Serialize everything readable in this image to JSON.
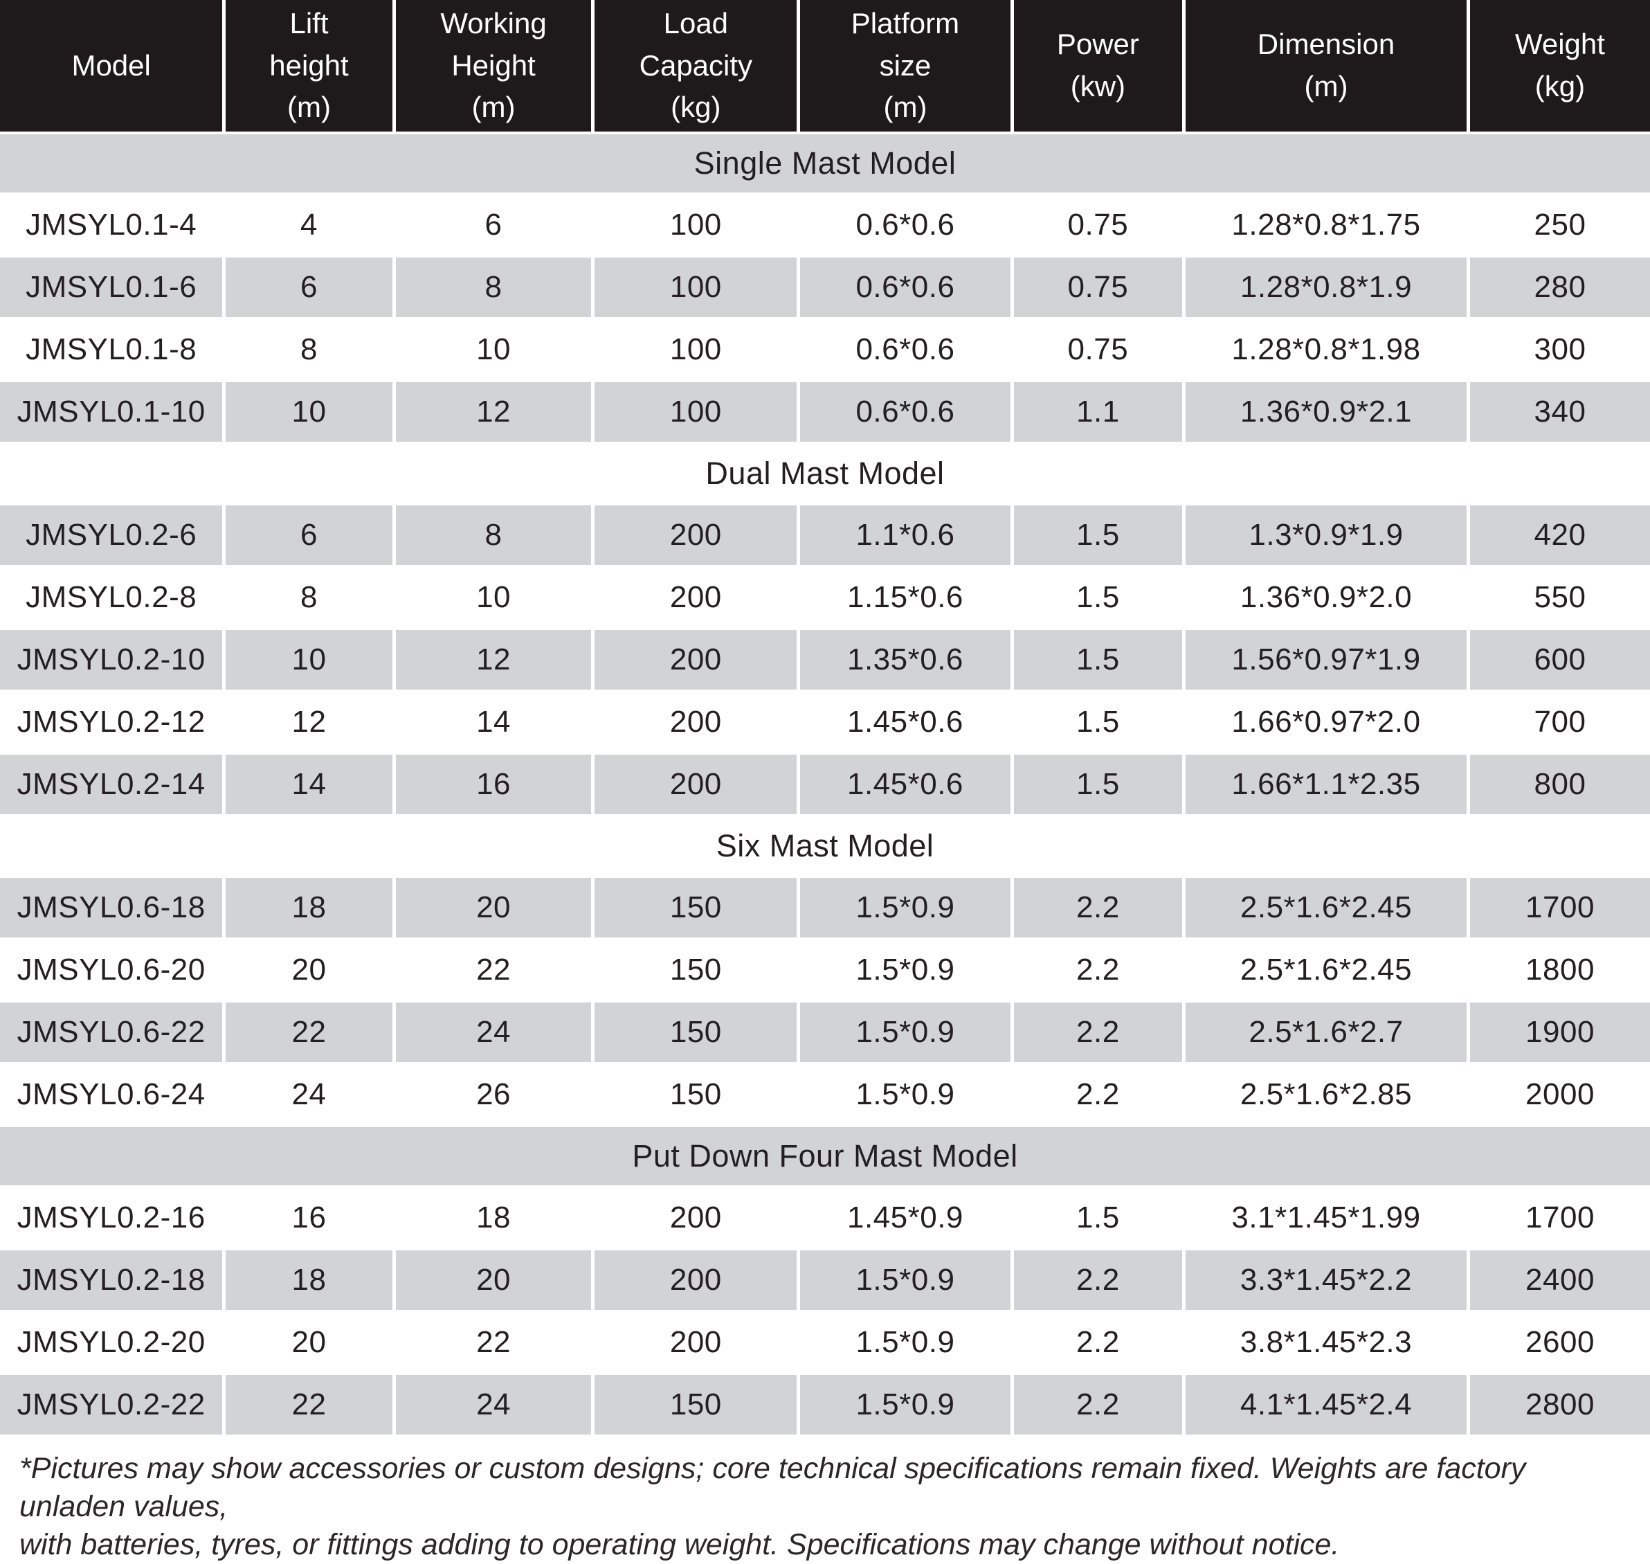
{
  "colors": {
    "header_bg": "#1e1a1b",
    "header_text": "#ffffff",
    "stripe_gray": "#d2d3d5",
    "body_text": "#231f20"
  },
  "table": {
    "columns": [
      {
        "id": "model",
        "label": "Model"
      },
      {
        "id": "lift-height",
        "label": "Lift\nheight\n(m)"
      },
      {
        "id": "working-height",
        "label": "Working\nHeight\n(m)"
      },
      {
        "id": "load-capacity",
        "label": "Load\nCapacity\n(kg)"
      },
      {
        "id": "platform-size",
        "label": "Platform\nsize\n(m)"
      },
      {
        "id": "power",
        "label": "Power\n(kw)"
      },
      {
        "id": "dimension",
        "label": "Dimension\n(m)"
      },
      {
        "id": "weight",
        "label": "Weight\n(kg)"
      }
    ],
    "sections": [
      {
        "title": "Single Mast Model",
        "rows": [
          [
            "JMSYL0.1-4",
            "4",
            "6",
            "100",
            "0.6*0.6",
            "0.75",
            "1.28*0.8*1.75",
            "250"
          ],
          [
            "JMSYL0.1-6",
            "6",
            "8",
            "100",
            "0.6*0.6",
            "0.75",
            "1.28*0.8*1.9",
            "280"
          ],
          [
            "JMSYL0.1-8",
            "8",
            "10",
            "100",
            "0.6*0.6",
            "0.75",
            "1.28*0.8*1.98",
            "300"
          ],
          [
            "JMSYL0.1-10",
            "10",
            "12",
            "100",
            "0.6*0.6",
            "1.1",
            "1.36*0.9*2.1",
            "340"
          ]
        ]
      },
      {
        "title": "Dual Mast Model",
        "rows": [
          [
            "JMSYL0.2-6",
            "6",
            "8",
            "200",
            "1.1*0.6",
            "1.5",
            "1.3*0.9*1.9",
            "420"
          ],
          [
            "JMSYL0.2-8",
            "8",
            "10",
            "200",
            "1.15*0.6",
            "1.5",
            "1.36*0.9*2.0",
            "550"
          ],
          [
            "JMSYL0.2-10",
            "10",
            "12",
            "200",
            "1.35*0.6",
            "1.5",
            "1.56*0.97*1.9",
            "600"
          ],
          [
            "JMSYL0.2-12",
            "12",
            "14",
            "200",
            "1.45*0.6",
            "1.5",
            "1.66*0.97*2.0",
            "700"
          ],
          [
            "JMSYL0.2-14",
            "14",
            "16",
            "200",
            "1.45*0.6",
            "1.5",
            "1.66*1.1*2.35",
            "800"
          ]
        ]
      },
      {
        "title": "Six Mast Model",
        "rows": [
          [
            "JMSYL0.6-18",
            "18",
            "20",
            "150",
            "1.5*0.9",
            "2.2",
            "2.5*1.6*2.45",
            "1700"
          ],
          [
            "JMSYL0.6-20",
            "20",
            "22",
            "150",
            "1.5*0.9",
            "2.2",
            "2.5*1.6*2.45",
            "1800"
          ],
          [
            "JMSYL0.6-22",
            "22",
            "24",
            "150",
            "1.5*0.9",
            "2.2",
            "2.5*1.6*2.7",
            "1900"
          ],
          [
            "JMSYL0.6-24",
            "24",
            "26",
            "150",
            "1.5*0.9",
            "2.2",
            "2.5*1.6*2.85",
            "2000"
          ]
        ]
      },
      {
        "title": "Put Down Four Mast Model",
        "rows": [
          [
            "JMSYL0.2-16",
            "16",
            "18",
            "200",
            "1.45*0.9",
            "1.5",
            "3.1*1.45*1.99",
            "1700"
          ],
          [
            "JMSYL0.2-18",
            "18",
            "20",
            "200",
            "1.5*0.9",
            "2.2",
            "3.3*1.45*2.2",
            "2400"
          ],
          [
            "JMSYL0.2-20",
            "20",
            "22",
            "200",
            "1.5*0.9",
            "2.2",
            "3.8*1.45*2.3",
            "2600"
          ],
          [
            "JMSYL0.2-22",
            "22",
            "24",
            "150",
            "1.5*0.9",
            "2.2",
            "4.1*1.45*2.4",
            "2800"
          ]
        ]
      }
    ],
    "footnote": "*Pictures may show accessories or custom designs; core technical specifications remain fixed. Weights are factory unladen values,\nwith batteries, tyres, or fittings adding to operating weight. Specifications may change without notice."
  }
}
